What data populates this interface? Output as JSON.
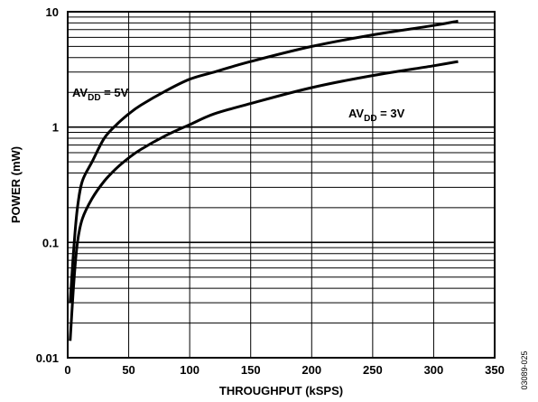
{
  "chart_data": {
    "type": "line",
    "xlabel": "THROUGHPUT (kSPS)",
    "ylabel": "POWER (mW)",
    "xlim": [
      0,
      350
    ],
    "ylim": [
      0.01,
      10
    ],
    "yscale": "log",
    "grid": true,
    "x_ticks": [
      0,
      50,
      100,
      150,
      200,
      250,
      300,
      350
    ],
    "x_tick_labels": [
      "0",
      "50",
      "100",
      "150",
      "200",
      "250",
      "300",
      "350"
    ],
    "y_ticks": [
      0.01,
      0.1,
      1,
      10
    ],
    "y_tick_labels": [
      "0.01",
      "0.1",
      "1",
      "10"
    ],
    "series": [
      {
        "label_main": "AV",
        "label_sub": "DD",
        "label_rest": " = 5V",
        "x": [
          2,
          5,
          8,
          12,
          20,
          30,
          40,
          50,
          60,
          80,
          100,
          120,
          150,
          200,
          250,
          300,
          320
        ],
        "y": [
          0.03,
          0.09,
          0.2,
          0.34,
          0.5,
          0.8,
          1.05,
          1.3,
          1.55,
          2.05,
          2.6,
          3.0,
          3.7,
          5.0,
          6.3,
          7.6,
          8.3
        ]
      },
      {
        "label_main": "AV",
        "label_sub": "DD",
        "label_rest": " = 3V",
        "x": [
          2,
          5,
          8,
          12,
          20,
          30,
          40,
          50,
          60,
          80,
          100,
          120,
          150,
          200,
          250,
          300,
          320
        ],
        "y": [
          0.014,
          0.045,
          0.1,
          0.16,
          0.24,
          0.34,
          0.44,
          0.54,
          0.64,
          0.84,
          1.05,
          1.3,
          1.6,
          2.2,
          2.8,
          3.4,
          3.7
        ]
      }
    ],
    "figure_id": "03089-025"
  }
}
